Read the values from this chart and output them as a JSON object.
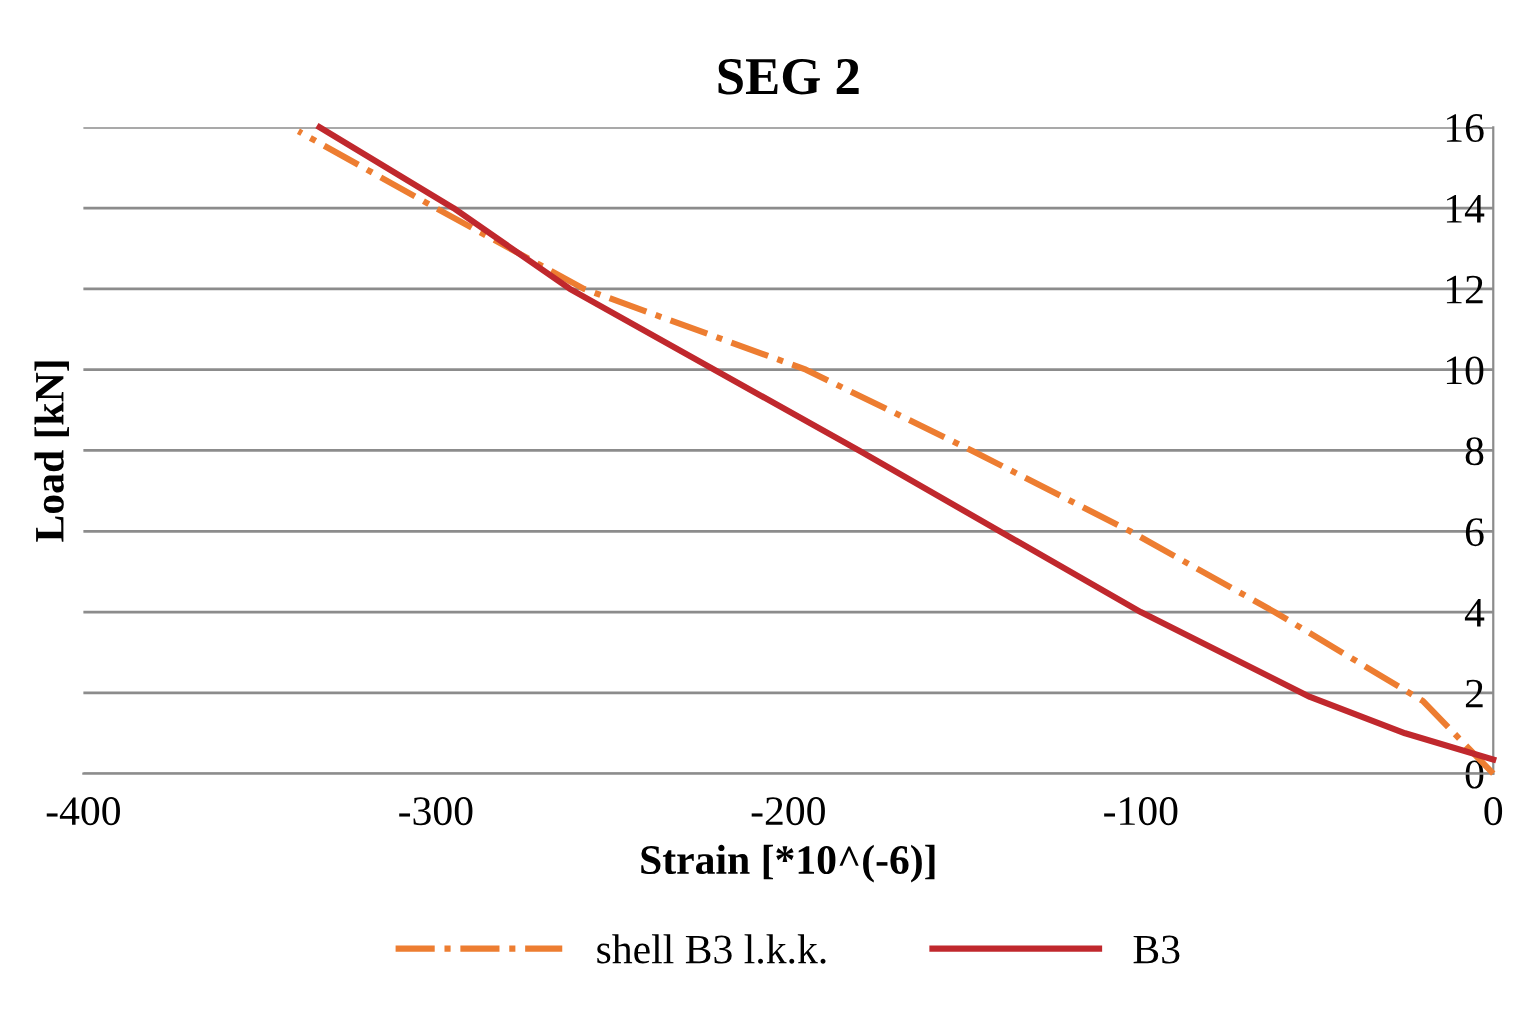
{
  "chart_data": {
    "type": "line",
    "title": "SEG 2",
    "xlabel": "Strain [*10^(-6)]",
    "ylabel": "Load [kN]",
    "xlim": [
      -400,
      0
    ],
    "xticks": [
      -400,
      -300,
      -200,
      -100,
      0
    ],
    "ylim": [
      0,
      16
    ],
    "yticks": [
      0,
      2,
      4,
      6,
      8,
      10,
      12,
      14,
      16
    ],
    "grid": "y",
    "legend": "bottom",
    "marker": "none",
    "series": [
      {
        "name": "shell B3 l.k.k.",
        "color": "#ed7d31",
        "line_style": "dashdot",
        "x": [
          0,
          -20,
          -62,
          -103,
          -148,
          -195,
          -258,
          -300,
          -339
        ],
        "values": [
          0,
          1.8,
          4,
          6,
          8,
          10,
          12,
          14,
          15.9
        ]
      },
      {
        "name": "B3",
        "color": "#c0282d",
        "line_style": "solid",
        "x": [
          0,
          -25,
          -52,
          -100,
          -180,
          -262,
          -295,
          -333
        ],
        "values": [
          0.35,
          1.0,
          1.9,
          4,
          8,
          12,
          14,
          16
        ]
      }
    ]
  }
}
